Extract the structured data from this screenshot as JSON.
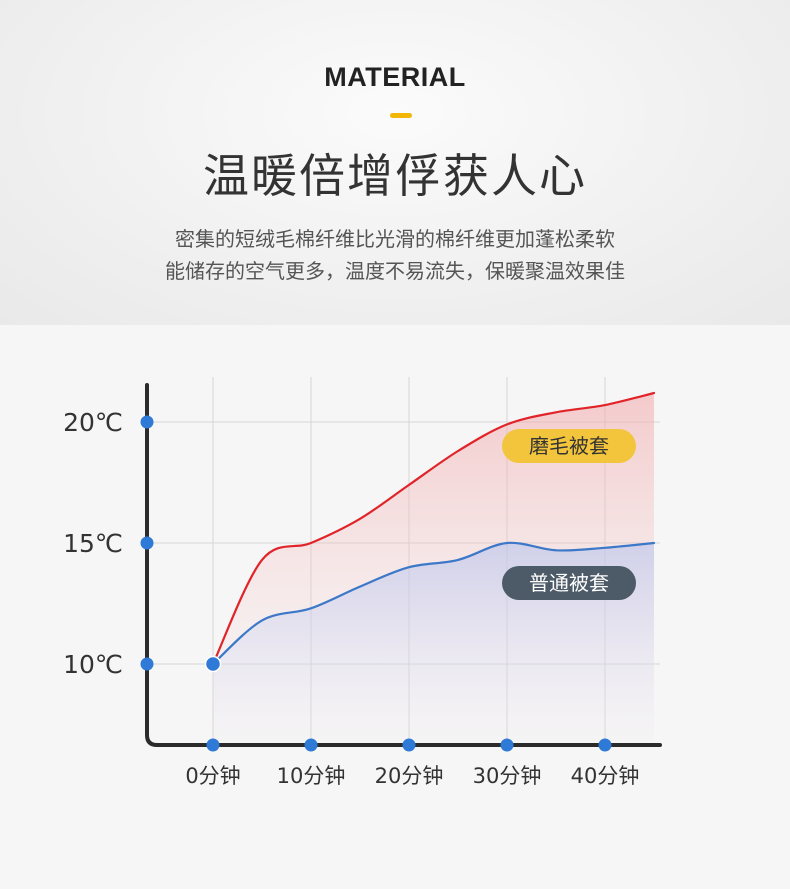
{
  "header": {
    "eyebrow": "MATERIAL",
    "title": "温暖倍增俘获人心",
    "description_lines": [
      "密集的短绒毛棉纤维比光滑的棉纤维更加蓬松柔软",
      "能储存的空气更多，温度不易流失，保暖聚温效果佳"
    ],
    "accent_color": "#f2b705"
  },
  "chart_data": {
    "type": "line",
    "x": [
      0,
      5,
      10,
      15,
      20,
      25,
      30,
      35,
      40,
      45
    ],
    "x_tick_values": [
      0,
      10,
      20,
      30,
      40
    ],
    "x_tick_labels": [
      "0分钟",
      "10分钟",
      "20分钟",
      "30分钟",
      "40分钟"
    ],
    "y_tick_values": [
      10,
      15,
      20
    ],
    "y_tick_labels": [
      "10℃",
      "15℃",
      "20℃"
    ],
    "xlim": [
      0,
      45
    ],
    "ylim": [
      6,
      21
    ],
    "grid": true,
    "series": [
      {
        "name": "磨毛被套",
        "color": "#e0242a",
        "label_bg": "#f2c53d",
        "label_color": "#333333",
        "values": [
          10.0,
          14.3,
          15.0,
          16.0,
          17.4,
          18.8,
          19.9,
          20.4,
          20.7,
          21.2
        ]
      },
      {
        "name": "普通被套",
        "color": "#3c78c8",
        "label_bg": "#4d5a68",
        "label_color": "#ffffff",
        "values": [
          10.0,
          11.8,
          12.3,
          13.2,
          14.0,
          14.3,
          15.0,
          14.7,
          14.8,
          15.0
        ]
      }
    ]
  }
}
